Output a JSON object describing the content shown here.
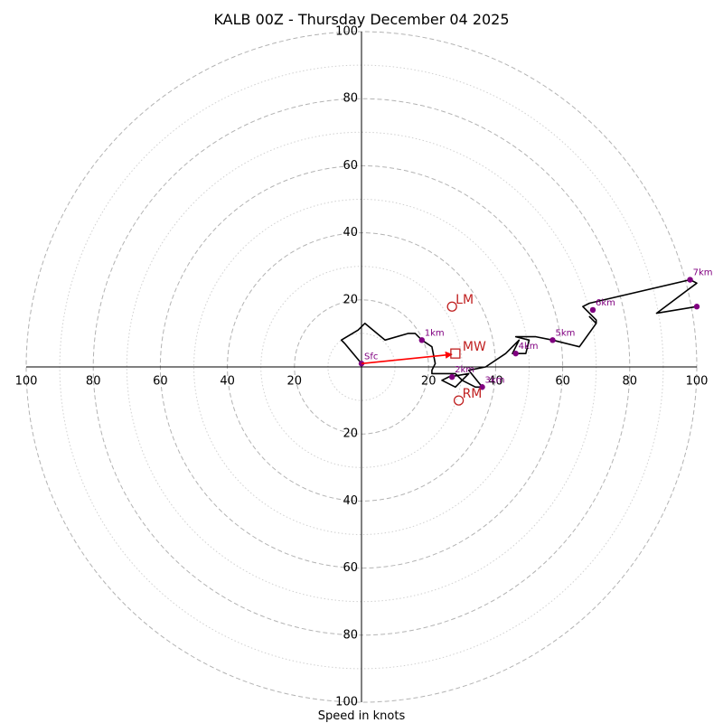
{
  "chart_data": {
    "type": "hodograph",
    "title": "KALB 00Z - Thursday December 04 2025",
    "xlabel": "Speed in knots",
    "range": [
      -100,
      100
    ],
    "ring_step": 20,
    "x_tick_labels": [
      "100",
      "80",
      "60",
      "40",
      "20",
      "20",
      "40",
      "60",
      "80",
      "100"
    ],
    "y_tick_labels_top": [
      "100",
      "80",
      "60",
      "40",
      "20"
    ],
    "y_tick_labels_bottom": [
      "20",
      "40",
      "60",
      "80",
      "100"
    ],
    "hodograph_uv": [
      [
        0,
        1
      ],
      [
        -5,
        7
      ],
      [
        -6,
        8
      ],
      [
        -1,
        11
      ],
      [
        1,
        13
      ],
      [
        7,
        8
      ],
      [
        14,
        10
      ],
      [
        16,
        10
      ],
      [
        18,
        8
      ],
      [
        21,
        6
      ],
      [
        22,
        1
      ],
      [
        21,
        -1
      ],
      [
        21,
        -2
      ],
      [
        28,
        -2
      ],
      [
        30,
        -4
      ],
      [
        28,
        -6
      ],
      [
        24,
        -4
      ],
      [
        26,
        -3
      ],
      [
        32,
        -2
      ],
      [
        30,
        -4
      ],
      [
        34,
        -6
      ],
      [
        36,
        -6
      ],
      [
        32,
        -1
      ],
      [
        37,
        0
      ],
      [
        43,
        4
      ],
      [
        47,
        8
      ],
      [
        45,
        4
      ],
      [
        49,
        4
      ],
      [
        50,
        8
      ],
      [
        46,
        9
      ],
      [
        47,
        9
      ],
      [
        52,
        9
      ],
      [
        57,
        8
      ],
      [
        65,
        6
      ],
      [
        70,
        13
      ],
      [
        68,
        15
      ],
      [
        70,
        13
      ],
      [
        70,
        14
      ],
      [
        66,
        18
      ],
      [
        68,
        19
      ],
      [
        98,
        26
      ],
      [
        100,
        25
      ],
      [
        88,
        16
      ],
      [
        100,
        18
      ]
    ],
    "height_markers": [
      {
        "label": "Sfc",
        "u": 0,
        "v": 1
      },
      {
        "label": "1km",
        "u": 18,
        "v": 8
      },
      {
        "label": "2km",
        "u": 27,
        "v": -3
      },
      {
        "label": "3km",
        "u": 36,
        "v": -6
      },
      {
        "label": "4km",
        "u": 46,
        "v": 4
      },
      {
        "label": "5km",
        "u": 57,
        "v": 8
      },
      {
        "label": "6km",
        "u": 69,
        "v": 17
      },
      {
        "label": "7km",
        "u": 98,
        "v": 26
      },
      {
        "label": "",
        "u": 100,
        "v": 18
      }
    ],
    "storm_motion": {
      "mean_wind": {
        "label": "MW",
        "u": 28,
        "v": 4
      },
      "left_mover": {
        "label": "LM",
        "u": 27,
        "v": 18
      },
      "right_mover": {
        "label": "RM",
        "u": 29,
        "v": -10
      }
    },
    "colors": {
      "hodograph": "#000000",
      "markers": "#800080",
      "storm_motion": "#c02020",
      "shear_vector": "#ff0000"
    }
  }
}
